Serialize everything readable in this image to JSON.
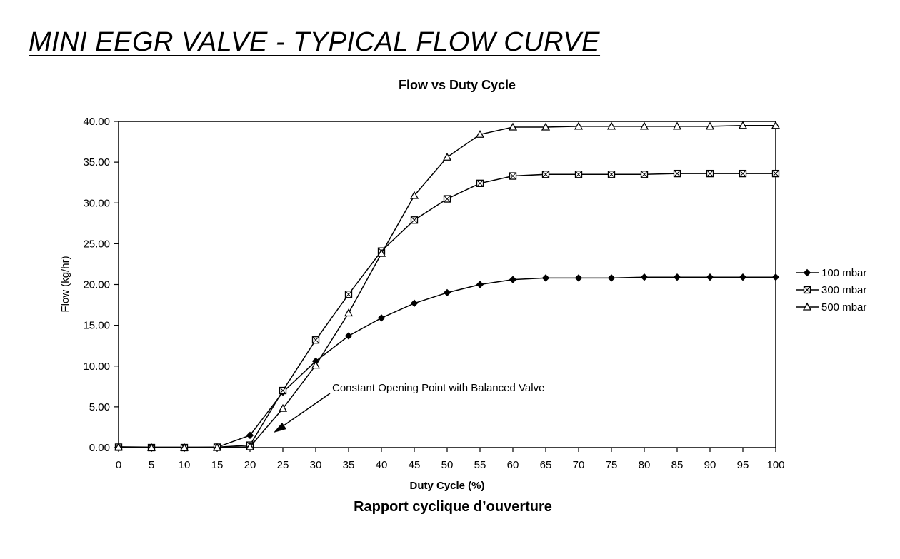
{
  "document_title": "MINI EEGR VALVE -  TYPICAL FLOW CURVE",
  "chart_data": {
    "type": "line",
    "title": "Flow vs Duty Cycle",
    "xlabel": "Duty Cycle (%)",
    "ylabel": "Flow (kg/hr)",
    "subtitle_below": "Rapport cyclique d’ouverture",
    "x": [
      0,
      5,
      10,
      15,
      20,
      25,
      30,
      35,
      40,
      45,
      50,
      55,
      60,
      65,
      70,
      75,
      80,
      85,
      90,
      95,
      100
    ],
    "xlim": [
      0,
      100
    ],
    "ylim": [
      0,
      40
    ],
    "y_ticks": [
      "0.00",
      "5.00",
      "10.00",
      "15.00",
      "20.00",
      "25.00",
      "30.00",
      "35.00",
      "40.00"
    ],
    "grid": false,
    "legend_position": "right",
    "series": [
      {
        "name": "100 mbar",
        "marker": "diamond",
        "values": [
          0.1,
          0.05,
          0.05,
          0.05,
          1.5,
          6.8,
          10.6,
          13.7,
          15.9,
          17.7,
          19.0,
          20.0,
          20.6,
          20.8,
          20.8,
          20.8,
          20.9,
          20.9,
          20.9,
          20.9,
          20.9
        ]
      },
      {
        "name": "300 mbar",
        "marker": "square",
        "values": [
          0.05,
          0.0,
          0.0,
          0.05,
          0.3,
          7.0,
          13.2,
          18.8,
          24.1,
          27.9,
          30.5,
          32.4,
          33.3,
          33.5,
          33.5,
          33.5,
          33.5,
          33.6,
          33.6,
          33.6,
          33.6
        ]
      },
      {
        "name": "500 mbar",
        "marker": "triangle",
        "values": [
          0.05,
          0.0,
          0.0,
          0.0,
          0.1,
          4.8,
          10.1,
          16.5,
          23.8,
          30.9,
          35.6,
          38.4,
          39.3,
          39.3,
          39.4,
          39.4,
          39.4,
          39.4,
          39.4,
          39.5,
          39.5
        ]
      }
    ],
    "annotation": {
      "text": "Constant Opening Point with Balanced Valve",
      "points_to_x": 24,
      "points_to_y": 2.5
    }
  }
}
